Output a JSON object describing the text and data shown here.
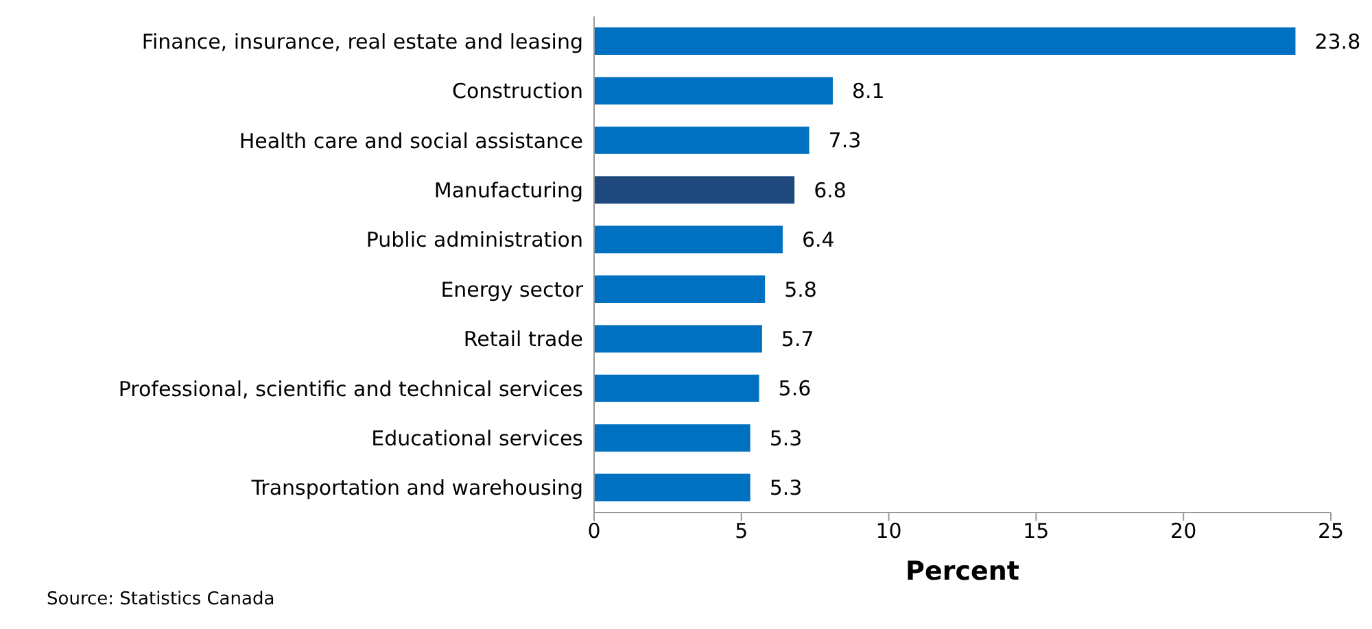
{
  "chart_data": {
    "type": "bar",
    "orientation": "horizontal",
    "categories": [
      "Finance, insurance, real estate and leasing",
      "Construction",
      "Health care and social assistance",
      "Manufacturing",
      "Public administration",
      "Energy sector",
      "Retail trade",
      "Professional, scientific and technical services",
      "Educational services",
      "Transportation and warehousing"
    ],
    "values": [
      23.8,
      8.1,
      7.3,
      6.8,
      6.4,
      5.8,
      5.7,
      5.6,
      5.3,
      5.3
    ],
    "colors": [
      "#0070c0",
      "#0070c0",
      "#0070c0",
      "#1f497d",
      "#0070c0",
      "#0070c0",
      "#0070c0",
      "#0070c0",
      "#0070c0",
      "#0070c0"
    ],
    "xlim": [
      0,
      25
    ],
    "xticks": [
      0,
      5,
      10,
      15,
      20,
      25
    ],
    "xlabel": "Percent",
    "data_labels": true,
    "grid": false,
    "annotations": [
      "Source: Statistics Canada"
    ]
  }
}
